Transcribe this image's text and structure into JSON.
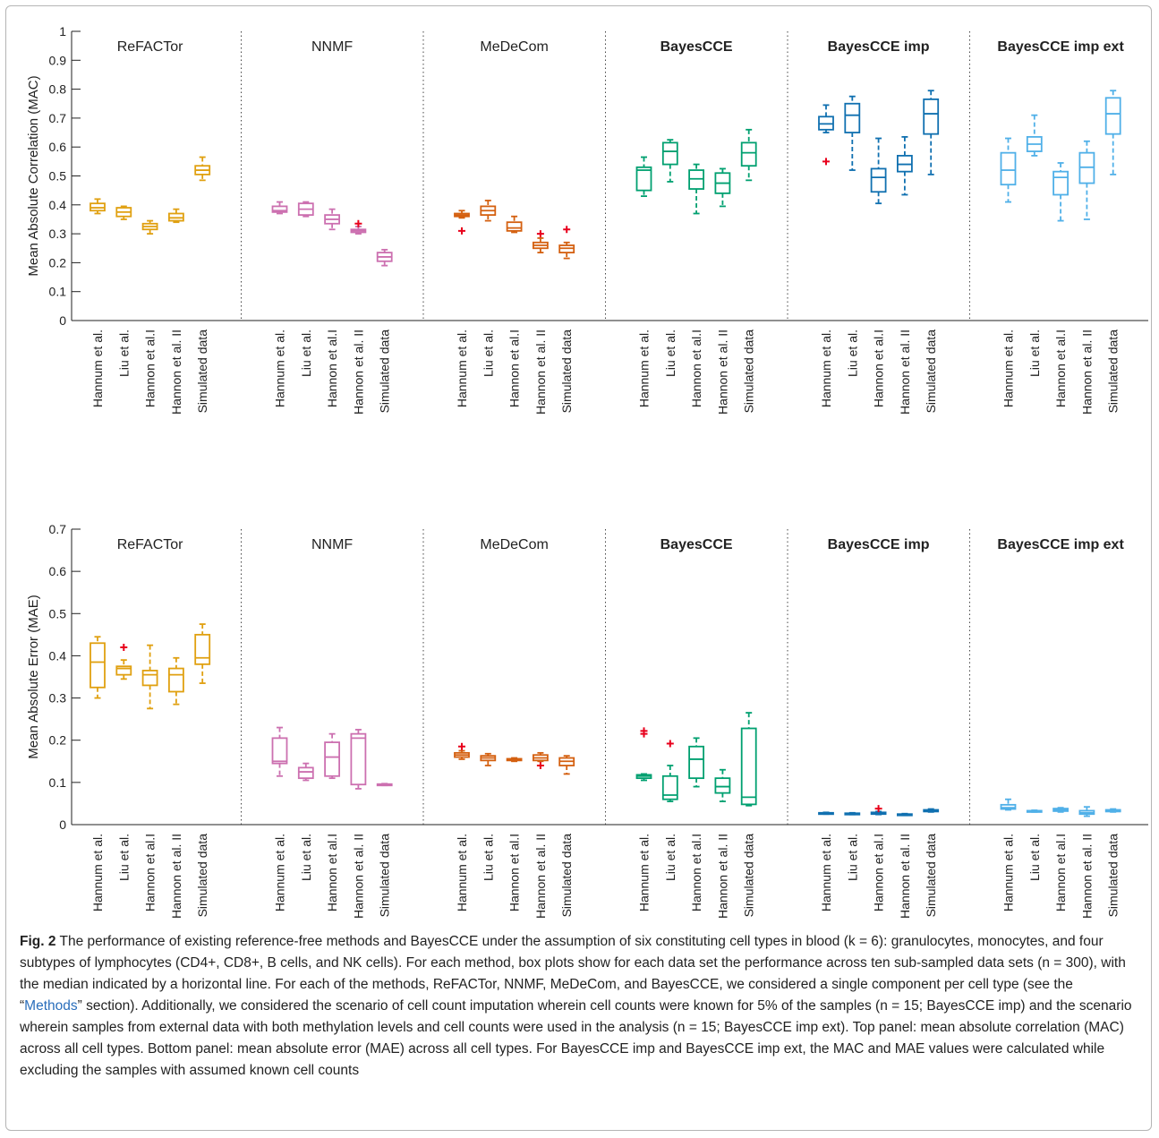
{
  "methods": [
    "ReFACTor",
    "NNMF",
    "MeDeCom",
    "BayesCCE",
    "BayesCCE imp",
    "BayesCCE imp ext"
  ],
  "method_bold": [
    false,
    false,
    false,
    true,
    true,
    true
  ],
  "method_colors": [
    "#e0a010",
    "#cc70b0",
    "#d46010",
    "#00a070",
    "#1070b0",
    "#50b0e8"
  ],
  "outlier_color": "#e8001c",
  "categories": [
    "Hannum et al.",
    "Liu et al.",
    "Hannon et al.I",
    "Hannon et al. II",
    "Simulated data"
  ],
  "chart_data": [
    {
      "type": "box",
      "panel": "top",
      "ylabel": "Mean Absolute Correlation (MAC)",
      "ylim": [
        0,
        1
      ],
      "yticks": [
        "0",
        "0.1",
        "0.2",
        "0.3",
        "0.4",
        "0.5",
        "0.6",
        "0.7",
        "0.8",
        "0.9",
        "1"
      ],
      "series": [
        {
          "name": "ReFACTor",
          "boxes": [
            {
              "min": 0.37,
              "q1": 0.38,
              "median": 0.39,
              "q3": 0.405,
              "max": 0.42,
              "outliers": []
            },
            {
              "min": 0.35,
              "q1": 0.36,
              "median": 0.375,
              "q3": 0.39,
              "max": 0.395,
              "outliers": []
            },
            {
              "min": 0.3,
              "q1": 0.315,
              "median": 0.325,
              "q3": 0.335,
              "max": 0.345,
              "outliers": []
            },
            {
              "min": 0.34,
              "q1": 0.345,
              "median": 0.355,
              "q3": 0.37,
              "max": 0.385,
              "outliers": []
            },
            {
              "min": 0.485,
              "q1": 0.505,
              "median": 0.52,
              "q3": 0.535,
              "max": 0.565,
              "outliers": []
            }
          ]
        },
        {
          "name": "NNMF",
          "boxes": [
            {
              "min": 0.37,
              "q1": 0.375,
              "median": 0.38,
              "q3": 0.395,
              "max": 0.41,
              "outliers": []
            },
            {
              "min": 0.36,
              "q1": 0.365,
              "median": 0.385,
              "q3": 0.405,
              "max": 0.41,
              "outliers": []
            },
            {
              "min": 0.315,
              "q1": 0.335,
              "median": 0.35,
              "q3": 0.365,
              "max": 0.385,
              "outliers": []
            },
            {
              "min": 0.3,
              "q1": 0.305,
              "median": 0.31,
              "q3": 0.315,
              "max": 0.325,
              "outliers": [
                0.335
              ]
            },
            {
              "min": 0.19,
              "q1": 0.205,
              "median": 0.22,
              "q3": 0.235,
              "max": 0.245,
              "outliers": []
            }
          ]
        },
        {
          "name": "MeDeCom",
          "boxes": [
            {
              "min": 0.355,
              "q1": 0.36,
              "median": 0.365,
              "q3": 0.37,
              "max": 0.38,
              "outliers": [
                0.31
              ]
            },
            {
              "min": 0.345,
              "q1": 0.365,
              "median": 0.38,
              "q3": 0.395,
              "max": 0.415,
              "outliers": []
            },
            {
              "min": 0.305,
              "q1": 0.31,
              "median": 0.32,
              "q3": 0.34,
              "max": 0.36,
              "outliers": []
            },
            {
              "min": 0.235,
              "q1": 0.25,
              "median": 0.26,
              "q3": 0.27,
              "max": 0.285,
              "outliers": [
                0.3
              ]
            },
            {
              "min": 0.215,
              "q1": 0.235,
              "median": 0.25,
              "q3": 0.26,
              "max": 0.27,
              "outliers": [
                0.315
              ]
            }
          ]
        },
        {
          "name": "BayesCCE",
          "boxes": [
            {
              "min": 0.43,
              "q1": 0.45,
              "median": 0.52,
              "q3": 0.53,
              "max": 0.565,
              "outliers": []
            },
            {
              "min": 0.48,
              "q1": 0.54,
              "median": 0.585,
              "q3": 0.615,
              "max": 0.625,
              "outliers": []
            },
            {
              "min": 0.37,
              "q1": 0.455,
              "median": 0.49,
              "q3": 0.52,
              "max": 0.54,
              "outliers": []
            },
            {
              "min": 0.395,
              "q1": 0.44,
              "median": 0.475,
              "q3": 0.51,
              "max": 0.525,
              "outliers": []
            },
            {
              "min": 0.485,
              "q1": 0.535,
              "median": 0.58,
              "q3": 0.615,
              "max": 0.66,
              "outliers": []
            }
          ]
        },
        {
          "name": "BayesCCE imp",
          "boxes": [
            {
              "min": 0.65,
              "q1": 0.66,
              "median": 0.68,
              "q3": 0.705,
              "max": 0.745,
              "outliers": [
                0.55
              ]
            },
            {
              "min": 0.52,
              "q1": 0.65,
              "median": 0.71,
              "q3": 0.75,
              "max": 0.775,
              "outliers": []
            },
            {
              "min": 0.405,
              "q1": 0.445,
              "median": 0.495,
              "q3": 0.525,
              "max": 0.63,
              "outliers": []
            },
            {
              "min": 0.435,
              "q1": 0.515,
              "median": 0.54,
              "q3": 0.57,
              "max": 0.635,
              "outliers": []
            },
            {
              "min": 0.505,
              "q1": 0.645,
              "median": 0.715,
              "q3": 0.765,
              "max": 0.795,
              "outliers": []
            }
          ]
        },
        {
          "name": "BayesCCE imp ext",
          "boxes": [
            {
              "min": 0.41,
              "q1": 0.47,
              "median": 0.52,
              "q3": 0.58,
              "max": 0.63,
              "outliers": []
            },
            {
              "min": 0.57,
              "q1": 0.585,
              "median": 0.61,
              "q3": 0.635,
              "max": 0.71,
              "outliers": []
            },
            {
              "min": 0.345,
              "q1": 0.435,
              "median": 0.495,
              "q3": 0.515,
              "max": 0.545,
              "outliers": []
            },
            {
              "min": 0.35,
              "q1": 0.475,
              "median": 0.53,
              "q3": 0.58,
              "max": 0.62,
              "outliers": []
            },
            {
              "min": 0.505,
              "q1": 0.645,
              "median": 0.715,
              "q3": 0.77,
              "max": 0.795,
              "outliers": []
            }
          ]
        }
      ]
    },
    {
      "type": "box",
      "panel": "bottom",
      "ylabel": "Mean Absolute Error (MAE)",
      "ylim": [
        0,
        0.7
      ],
      "yticks": [
        "0",
        "0.1",
        "0.2",
        "0.3",
        "0.4",
        "0.5",
        "0.6",
        "0.7"
      ],
      "series": [
        {
          "name": "ReFACTor",
          "boxes": [
            {
              "min": 0.3,
              "q1": 0.325,
              "median": 0.385,
              "q3": 0.43,
              "max": 0.445,
              "outliers": []
            },
            {
              "min": 0.345,
              "q1": 0.355,
              "median": 0.37,
              "q3": 0.375,
              "max": 0.39,
              "outliers": [
                0.42
              ]
            },
            {
              "min": 0.275,
              "q1": 0.33,
              "median": 0.355,
              "q3": 0.365,
              "max": 0.425,
              "outliers": []
            },
            {
              "min": 0.285,
              "q1": 0.315,
              "median": 0.355,
              "q3": 0.37,
              "max": 0.395,
              "outliers": []
            },
            {
              "min": 0.335,
              "q1": 0.38,
              "median": 0.395,
              "q3": 0.45,
              "max": 0.475,
              "outliers": []
            }
          ]
        },
        {
          "name": "NNMF",
          "boxes": [
            {
              "min": 0.115,
              "q1": 0.145,
              "median": 0.15,
              "q3": 0.205,
              "max": 0.23,
              "outliers": []
            },
            {
              "min": 0.105,
              "q1": 0.11,
              "median": 0.125,
              "q3": 0.135,
              "max": 0.145,
              "outliers": []
            },
            {
              "min": 0.11,
              "q1": 0.115,
              "median": 0.16,
              "q3": 0.195,
              "max": 0.215,
              "outliers": []
            },
            {
              "min": 0.085,
              "q1": 0.095,
              "median": 0.205,
              "q3": 0.215,
              "max": 0.225,
              "outliers": []
            },
            {
              "min": 0.093,
              "q1": 0.094,
              "median": 0.095,
              "q3": 0.096,
              "max": 0.097,
              "outliers": []
            }
          ]
        },
        {
          "name": "MeDeCom",
          "boxes": [
            {
              "min": 0.155,
              "q1": 0.16,
              "median": 0.165,
              "q3": 0.17,
              "max": 0.175,
              "outliers": [
                0.185
              ]
            },
            {
              "min": 0.14,
              "q1": 0.152,
              "median": 0.158,
              "q3": 0.163,
              "max": 0.168,
              "outliers": []
            },
            {
              "min": 0.15,
              "q1": 0.152,
              "median": 0.154,
              "q3": 0.156,
              "max": 0.158,
              "outliers": []
            },
            {
              "min": 0.15,
              "q1": 0.152,
              "median": 0.158,
              "q3": 0.165,
              "max": 0.17,
              "outliers": [
                0.14
              ]
            },
            {
              "min": 0.12,
              "q1": 0.14,
              "median": 0.15,
              "q3": 0.158,
              "max": 0.163,
              "outliers": []
            }
          ]
        },
        {
          "name": "BayesCCE",
          "boxes": [
            {
              "min": 0.105,
              "q1": 0.11,
              "median": 0.115,
              "q3": 0.118,
              "max": 0.12,
              "outliers": [
                0.215,
                0.222
              ]
            },
            {
              "min": 0.055,
              "q1": 0.06,
              "median": 0.07,
              "q3": 0.115,
              "max": 0.14,
              "outliers": [
                0.192
              ]
            },
            {
              "min": 0.09,
              "q1": 0.11,
              "median": 0.155,
              "q3": 0.185,
              "max": 0.205,
              "outliers": []
            },
            {
              "min": 0.055,
              "q1": 0.075,
              "median": 0.09,
              "q3": 0.11,
              "max": 0.13,
              "outliers": []
            },
            {
              "min": 0.045,
              "q1": 0.048,
              "median": 0.065,
              "q3": 0.228,
              "max": 0.265,
              "outliers": []
            }
          ]
        },
        {
          "name": "BayesCCE imp",
          "boxes": [
            {
              "min": 0.025,
              "q1": 0.026,
              "median": 0.027,
              "q3": 0.028,
              "max": 0.029,
              "outliers": []
            },
            {
              "min": 0.024,
              "q1": 0.025,
              "median": 0.026,
              "q3": 0.027,
              "max": 0.028,
              "outliers": []
            },
            {
              "min": 0.024,
              "q1": 0.025,
              "median": 0.027,
              "q3": 0.029,
              "max": 0.031,
              "outliers": [
                0.038
              ]
            },
            {
              "min": 0.022,
              "q1": 0.023,
              "median": 0.024,
              "q3": 0.025,
              "max": 0.026,
              "outliers": []
            },
            {
              "min": 0.03,
              "q1": 0.031,
              "median": 0.033,
              "q3": 0.035,
              "max": 0.037,
              "outliers": []
            }
          ]
        },
        {
          "name": "BayesCCE imp ext",
          "boxes": [
            {
              "min": 0.035,
              "q1": 0.037,
              "median": 0.04,
              "q3": 0.047,
              "max": 0.06,
              "outliers": []
            },
            {
              "min": 0.03,
              "q1": 0.031,
              "median": 0.032,
              "q3": 0.033,
              "max": 0.034,
              "outliers": []
            },
            {
              "min": 0.03,
              "q1": 0.032,
              "median": 0.035,
              "q3": 0.038,
              "max": 0.04,
              "outliers": []
            },
            {
              "min": 0.02,
              "q1": 0.025,
              "median": 0.028,
              "q3": 0.033,
              "max": 0.042,
              "outliers": []
            },
            {
              "min": 0.03,
              "q1": 0.031,
              "median": 0.033,
              "q3": 0.035,
              "max": 0.037,
              "outliers": []
            }
          ]
        }
      ]
    }
  ],
  "caption": {
    "fig_label": "Fig. 2",
    "part1": " The performance of existing reference-free methods and BayesCCE under the assumption of six constituting cell types in blood (k = 6): granulocytes, monocytes, and four subtypes of lymphocytes (CD4+, CD8+, B cells, and NK cells). For each method, box plots show for each data set the performance across ten sub-sampled data sets (n = 300), with the median indicated by a horizontal line. For each of the methods, ReFACTor, NNMF, MeDeCom, and BayesCCE, we considered a single component per cell type (see the “",
    "link": "Methods",
    "part2": "” section). Additionally, we considered the scenario of cell count imputation wherein cell counts were known for 5% of the samples (n = 15; BayesCCE imp) and the scenario wherein samples from external data with both methylation levels and cell counts were used in the analysis (n = 15; BayesCCE imp ext). Top panel: mean absolute correlation (MAC) across all cell types. Bottom panel: mean absolute error (MAE) across all cell types. For BayesCCE imp and BayesCCE imp ext, the MAC and MAE values were calculated while excluding the samples with assumed known cell counts"
  }
}
